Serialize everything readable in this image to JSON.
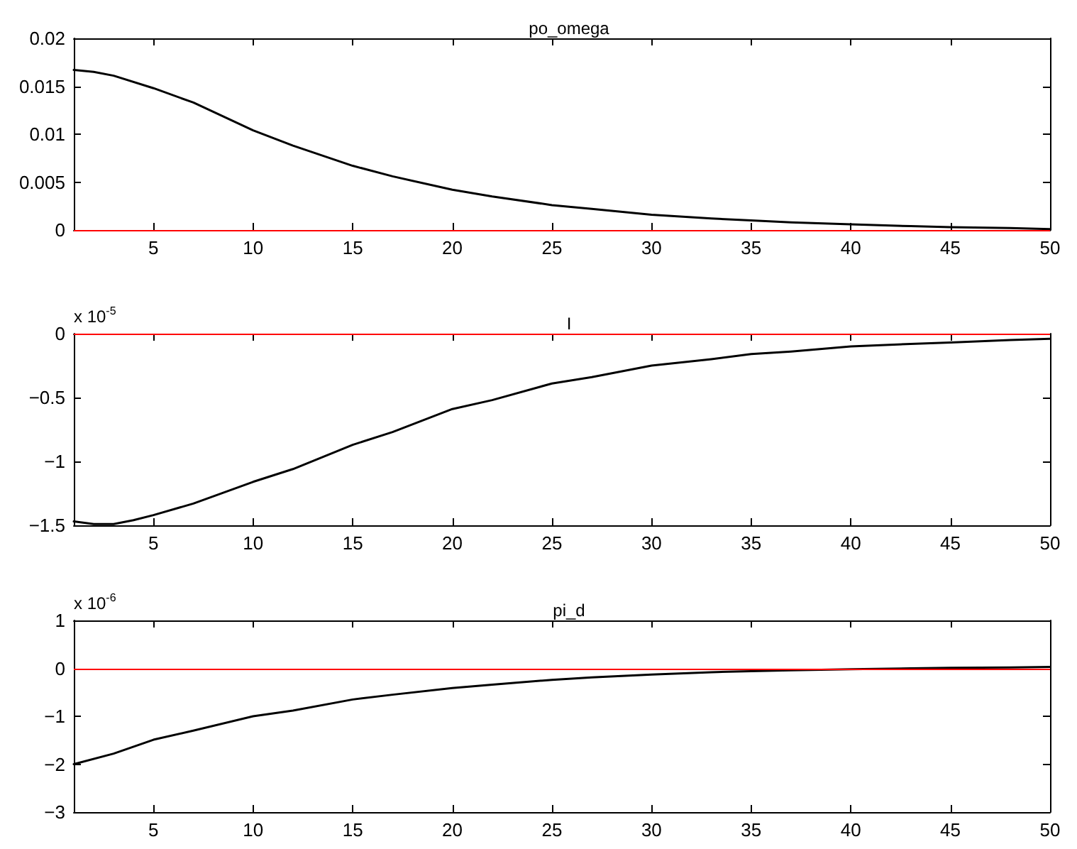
{
  "chart_data": [
    {
      "type": "line",
      "title": "po_omega",
      "x": [
        1,
        2,
        3,
        5,
        7,
        10,
        12,
        15,
        17,
        20,
        22,
        25,
        27,
        30,
        33,
        35,
        37,
        40,
        43,
        45,
        48,
        50
      ],
      "series": [
        {
          "color": "#000000",
          "values": [
            0.0167,
            0.0165,
            0.0161,
            0.0148,
            0.0133,
            0.0104,
            0.0088,
            0.0067,
            0.0056,
            0.0042,
            0.0035,
            0.0026,
            0.0022,
            0.0016,
            0.0012,
            0.001,
            0.0008,
            0.0006,
            0.0004,
            0.0003,
            0.0002,
            0.0001
          ]
        }
      ],
      "xlim": [
        1,
        50
      ],
      "xticks": [
        5,
        10,
        15,
        20,
        25,
        30,
        35,
        40,
        45,
        50
      ],
      "ylim": [
        0,
        0.02
      ],
      "yticks": [
        0,
        0.005,
        0.01,
        0.015,
        0.02
      ],
      "ref_lines": [
        {
          "axis": "y",
          "value": 0,
          "color": "#ff0000"
        }
      ],
      "grid": false,
      "marker": "none",
      "line_style": "solid"
    },
    {
      "type": "line",
      "title": "I",
      "annotations": [
        "x 10$^{-5}$"
      ],
      "x": [
        1,
        2,
        3,
        4,
        5,
        7,
        10,
        12,
        15,
        17,
        20,
        22,
        25,
        27,
        30,
        33,
        35,
        37,
        40,
        43,
        45,
        48,
        50
      ],
      "series": [
        {
          "color": "#000000",
          "values": [
            -1.47,
            -1.49,
            -1.49,
            -1.46,
            -1.42,
            -1.33,
            -1.16,
            -1.06,
            -0.87,
            -0.77,
            -0.59,
            -0.52,
            -0.39,
            -0.34,
            -0.25,
            -0.2,
            -0.16,
            -0.14,
            -0.1,
            -0.08,
            -0.07,
            -0.05,
            -0.04
          ]
        }
      ],
      "xlim": [
        1,
        50
      ],
      "xticks": [
        5,
        10,
        15,
        20,
        25,
        30,
        35,
        40,
        45,
        50
      ],
      "ylim": [
        -1.5,
        0
      ],
      "yticks": [
        {
          "value": -1.5,
          "label": "−1.5"
        },
        {
          "value": -1,
          "label": "−1"
        },
        {
          "value": -0.5,
          "label": "−0.5"
        },
        0
      ],
      "ref_lines": [
        {
          "axis": "y",
          "value": 0,
          "color": "#ff0000"
        }
      ],
      "grid": false,
      "marker": "none",
      "line_style": "solid"
    },
    {
      "type": "line",
      "title": "pi_d",
      "annotations": [
        "x 10$^{-6}$"
      ],
      "x": [
        1,
        3,
        5,
        7,
        10,
        12,
        15,
        17,
        20,
        22,
        25,
        27,
        30,
        33,
        35,
        37,
        40,
        43,
        45,
        48,
        50
      ],
      "series": [
        {
          "color": "#000000",
          "values": [
            -2.0,
            -1.78,
            -1.49,
            -1.3,
            -1.0,
            -0.88,
            -0.65,
            -0.55,
            -0.41,
            -0.34,
            -0.24,
            -0.19,
            -0.13,
            -0.08,
            -0.06,
            -0.04,
            -0.02,
            0.0,
            0.01,
            0.02,
            0.03
          ]
        }
      ],
      "xlim": [
        1,
        50
      ],
      "xticks": [
        5,
        10,
        15,
        20,
        25,
        30,
        35,
        40,
        45,
        50
      ],
      "ylim": [
        -3,
        1
      ],
      "yticks": [
        {
          "value": -3,
          "label": "−3"
        },
        {
          "value": -2,
          "label": "−2"
        },
        {
          "value": -1,
          "label": "−1"
        },
        0,
        1
      ],
      "ref_lines": [
        {
          "axis": "y",
          "value": 0,
          "color": "#ff0000"
        }
      ],
      "grid": false,
      "marker": "none",
      "line_style": "solid"
    }
  ]
}
